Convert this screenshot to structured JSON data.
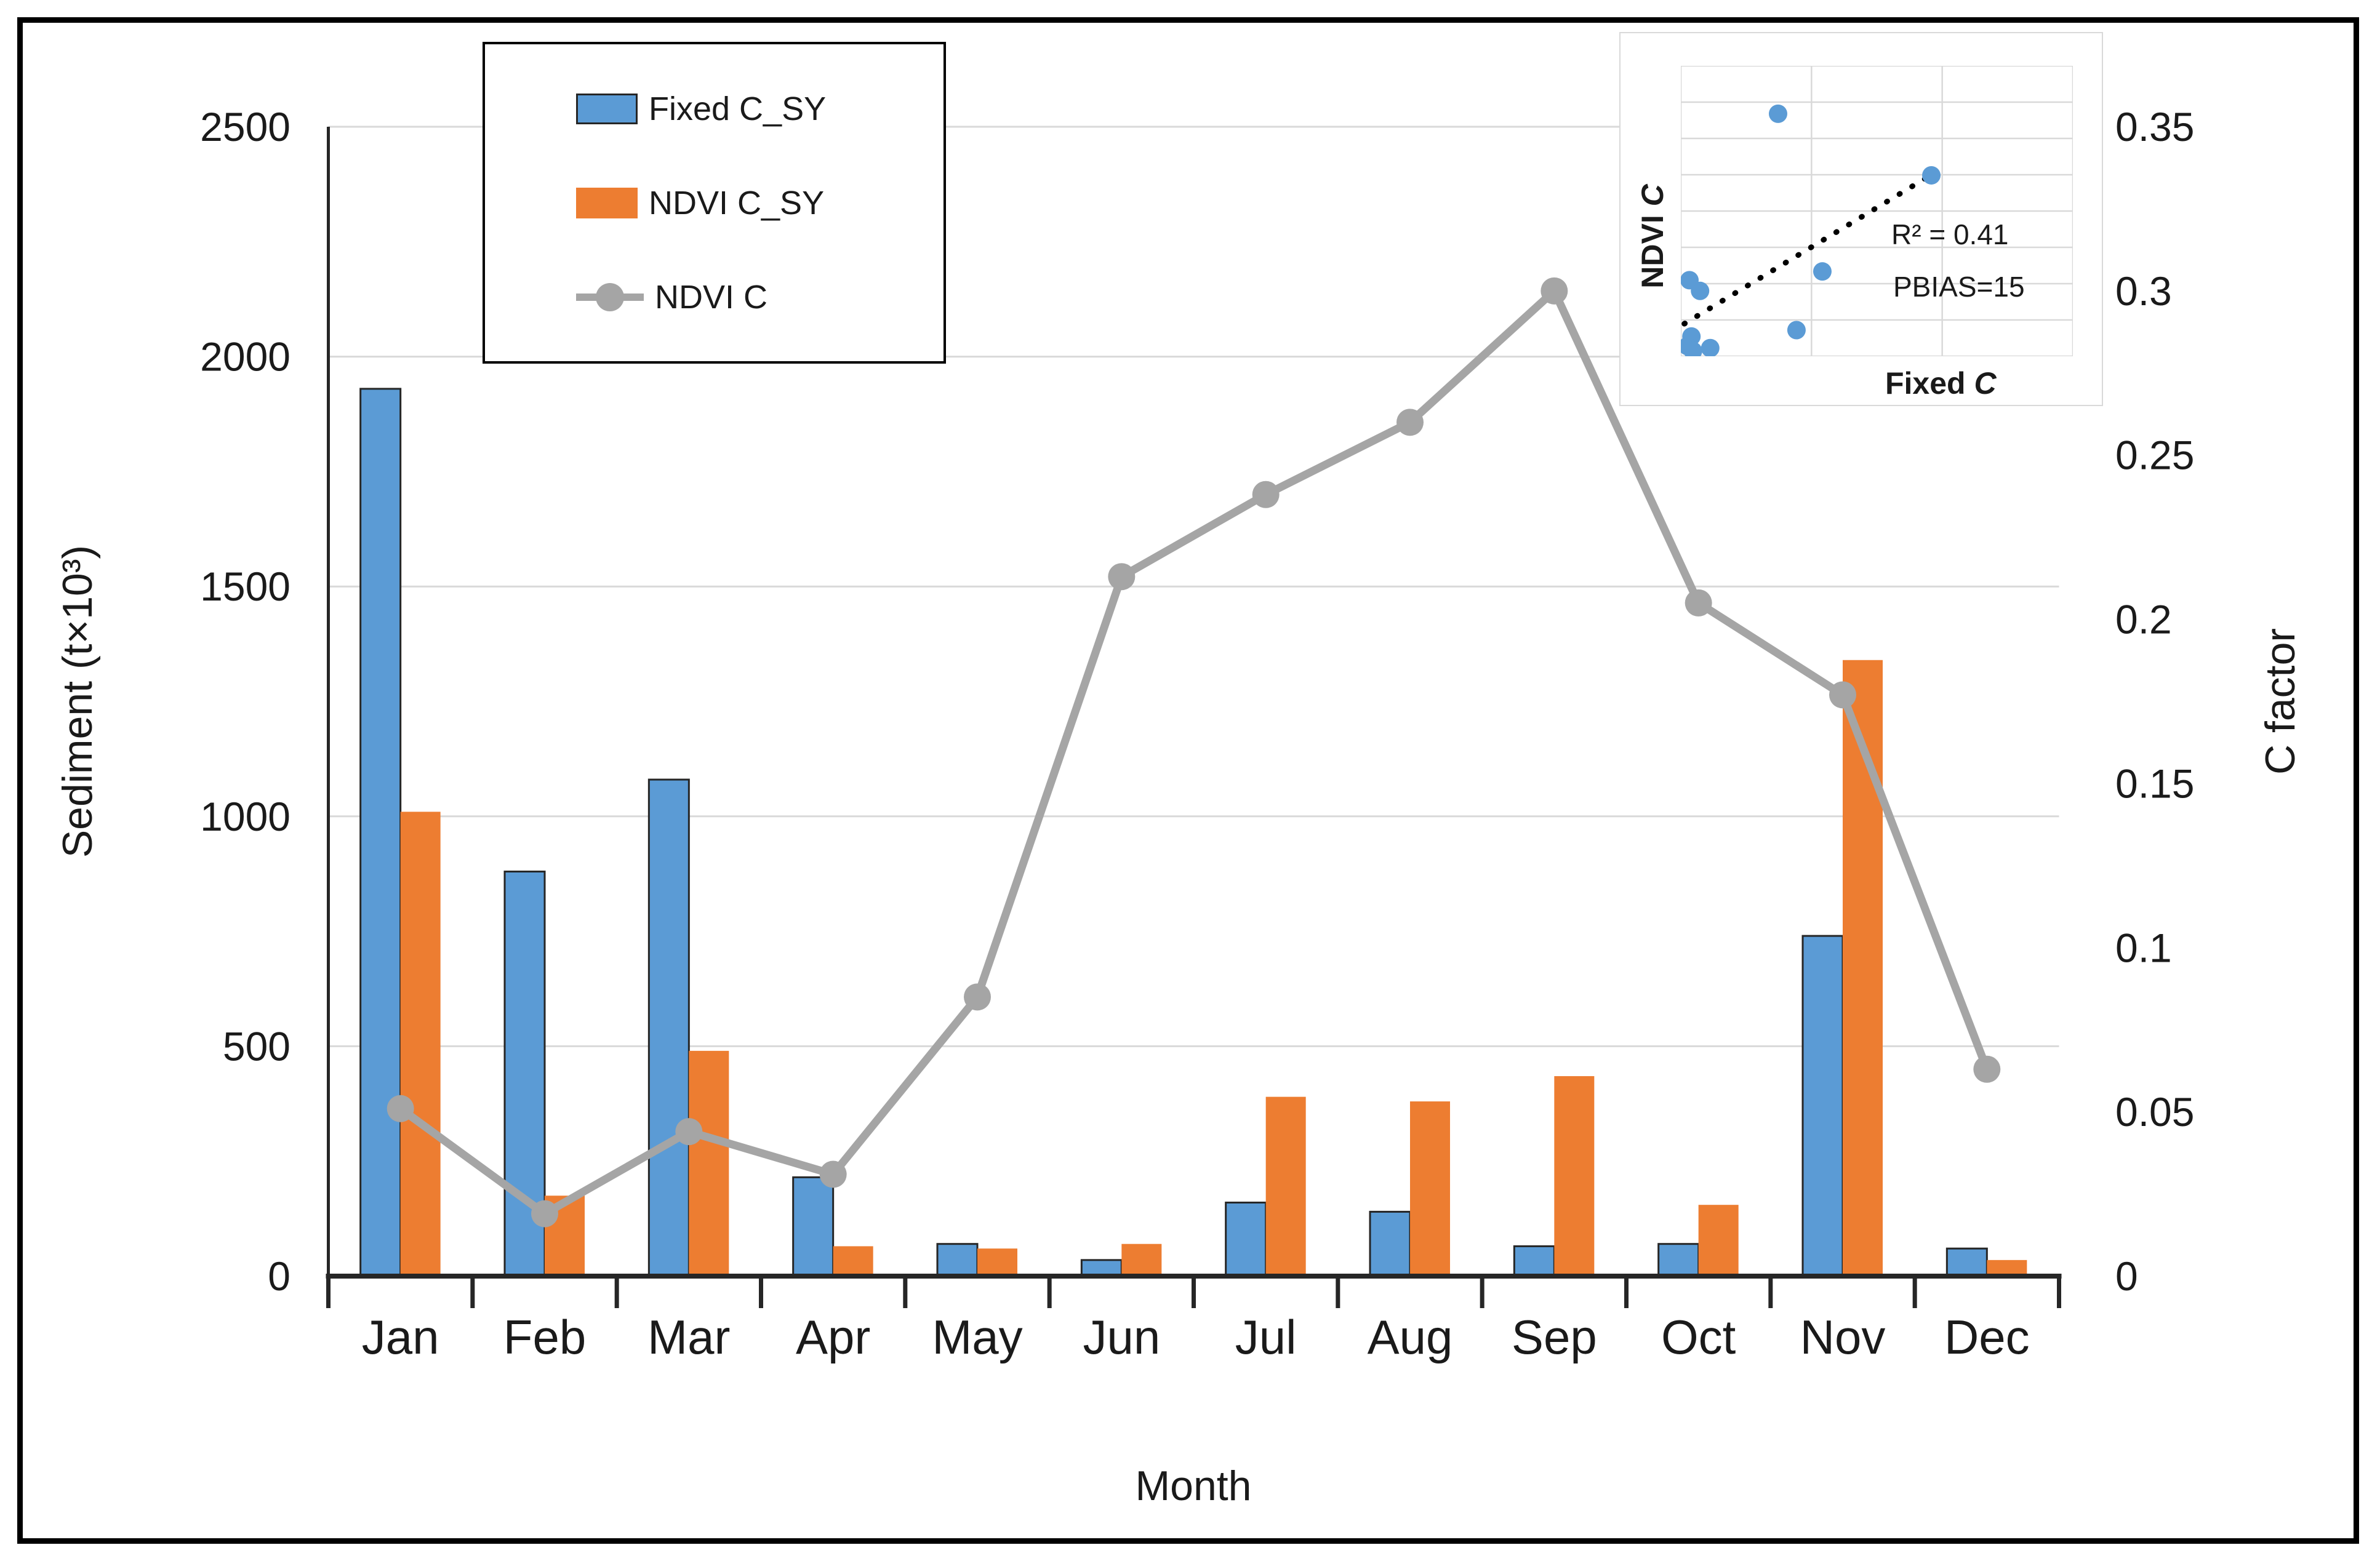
{
  "figure": {
    "kind": "excel-style combo chart",
    "background": "#ffffff",
    "border_color": "#000000"
  },
  "colors": {
    "bar_fixed": "#5B9BD5",
    "bar_ndvi": "#ED7D31",
    "line_ndvi_c": "#A5A5A5",
    "gridline": "#D9D9D9",
    "axis_line": "#262626",
    "text": "#1a1a1a",
    "scatter_point": "#5B9BD5",
    "trendline": "#000000"
  },
  "legend": {
    "items": [
      {
        "label": "Fixed C_SY",
        "type": "bar",
        "color": "#5B9BD5"
      },
      {
        "label": "NDVI C_SY",
        "type": "bar",
        "color": "#ED7D31"
      },
      {
        "label": "NDVI C",
        "type": "line-marker",
        "color": "#A5A5A5"
      }
    ]
  },
  "chart_data": {
    "type": "combo",
    "categories": [
      "Jan",
      "Feb",
      "Mar",
      "Apr",
      "May",
      "Jun",
      "Jul",
      "Aug",
      "Sep",
      "Oct",
      "Nov",
      "Dec"
    ],
    "series": [
      {
        "name": "Fixed C_SY",
        "type": "bar",
        "axis": "left",
        "color": "#5B9BD5",
        "values": [
          1930,
          880,
          1080,
          215,
          70,
          35,
          160,
          140,
          65,
          70,
          740,
          60
        ]
      },
      {
        "name": "NDVI C_SY",
        "type": "bar",
        "axis": "left",
        "color": "#ED7D31",
        "values": [
          1010,
          175,
          490,
          65,
          60,
          70,
          390,
          380,
          435,
          155,
          1340,
          35
        ]
      },
      {
        "name": "NDVI C",
        "type": "line",
        "axis": "right",
        "color": "#A5A5A5",
        "values": [
          0.051,
          0.019,
          0.044,
          0.031,
          0.085,
          0.213,
          0.238,
          0.26,
          0.3,
          0.205,
          0.177,
          0.063
        ]
      }
    ],
    "left_axis": {
      "label": "Sediment (t×10³)",
      "range": [
        0,
        2500
      ],
      "ticks": [
        0,
        500,
        1000,
        1500,
        2000,
        2500
      ],
      "tick_labels": [
        "0",
        "500",
        "1000",
        "1500",
        "2000",
        "2500"
      ]
    },
    "right_axis": {
      "label": "C factor",
      "range": [
        0,
        0.35
      ],
      "ticks": [
        0,
        0.05,
        0.1,
        0.15,
        0.2,
        0.25,
        0.3,
        0.35
      ],
      "tick_labels": [
        "0",
        "0.05",
        "0.1",
        "0.15",
        "0.2",
        "0.25",
        "0.3",
        "0.35"
      ]
    },
    "x_axis": {
      "label": "Month"
    },
    "grid": "horizontal",
    "legend_position": "top-left-inside",
    "inset": {
      "type": "scatter",
      "ylabel_prefix": "NDVI ",
      "ylabel_c": "C",
      "xlabel_prefix": "Fixed ",
      "xlabel_c": "C",
      "r2_text": "R² = 0.41",
      "pbias_text": "PBIAS=15",
      "grid": {
        "cols": 3,
        "rows": 8
      },
      "points_frac": [
        {
          "x": 0.248,
          "y": 0.835
        },
        {
          "x": 0.639,
          "y": 0.623
        },
        {
          "x": 0.022,
          "y": 0.262
        },
        {
          "x": 0.049,
          "y": 0.225
        },
        {
          "x": 0.361,
          "y": 0.292
        },
        {
          "x": 0.295,
          "y": 0.09
        },
        {
          "x": 0.027,
          "y": 0.068
        },
        {
          "x": 0.017,
          "y": 0.035
        },
        {
          "x": 0.031,
          "y": 0.018
        },
        {
          "x": 0.075,
          "y": 0.028
        }
      ],
      "trendline_frac": {
        "x1": 0.009,
        "y1": 0.112,
        "x2": 0.648,
        "y2": 0.632
      }
    }
  }
}
